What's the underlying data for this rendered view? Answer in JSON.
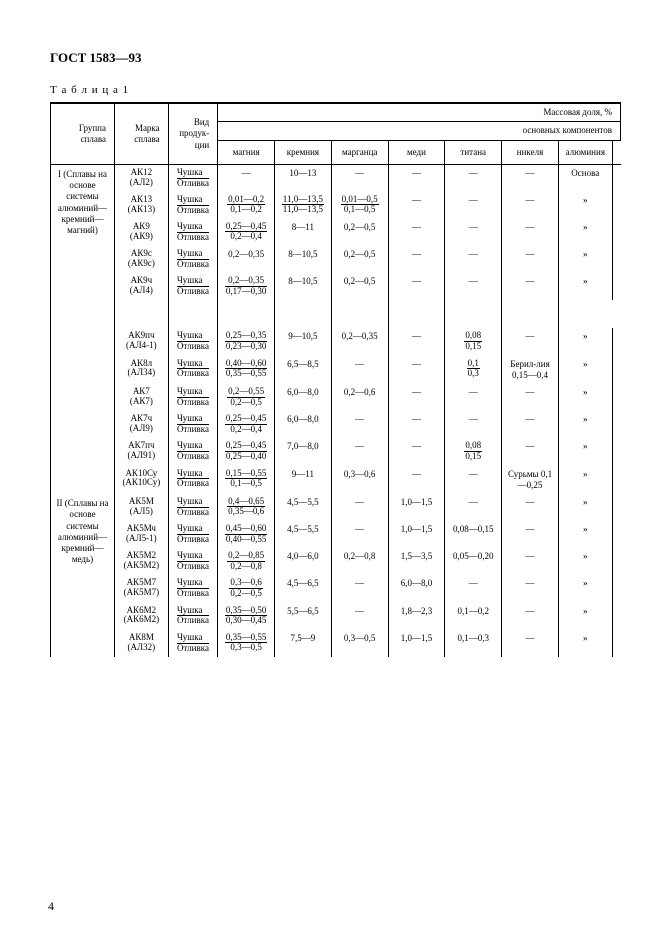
{
  "header": "ГОСТ 1583—93",
  "table_label": "Т а б л и ц а  1",
  "page_number": "4",
  "mass_label": "Массовая доля, %",
  "components_label": "основных компонентов",
  "cols": {
    "group": "Группа сплава",
    "mark": "Марка сплава",
    "prod": "Вид продук-ции",
    "mg": "магния",
    "si": "кремния",
    "mn": "марганца",
    "cu": "меди",
    "ti": "титана",
    "ni": "никеля",
    "al": "алюминия"
  },
  "group1": "I\n(Сплавы на основе системы алюминий—кремний—магний)",
  "group2": "II\n(Сплавы на основе системы алюминий—кремний—медь)",
  "prod_top": "Чушка",
  "prod_bot": "Отливка",
  "osnova": "Основа",
  "ditto": "»",
  "dash": "—",
  "rows1": [
    {
      "mark": "АК12",
      "mark2": "(АЛ2)",
      "mg": {
        "t": "—"
      },
      "si": {
        "t": "10—13"
      },
      "mn": {
        "t": "—"
      },
      "cu": {
        "t": "—"
      },
      "ti": {
        "t": "—"
      },
      "ni": {
        "t": "—"
      },
      "al": "Основа"
    },
    {
      "mark": "АК13",
      "mark2": "(АК13)",
      "mg": {
        "n": "0,01—0,2",
        "d": "0,1—0,2"
      },
      "si": {
        "n": "11,0—13,5",
        "d": "11,0—13,5"
      },
      "mn": {
        "n": "0,01—0,5",
        "d": "0,1—0,5"
      },
      "cu": {
        "t": "—"
      },
      "ti": {
        "t": "—"
      },
      "ni": {
        "t": "—"
      },
      "al": "»"
    },
    {
      "mark": "АК9",
      "mark2": "(АК9)",
      "mg": {
        "n": "0,25—0,45",
        "d": "0,2—0,4"
      },
      "si": {
        "t": "8—11"
      },
      "mn": {
        "t": "0,2—0,5"
      },
      "cu": {
        "t": "—"
      },
      "ti": {
        "t": "—"
      },
      "ni": {
        "t": "—"
      },
      "al": "»"
    },
    {
      "mark": "АК9с",
      "mark2": "(АК9с)",
      "mg": {
        "t": "0,2—0,35"
      },
      "si": {
        "t": "8—10,5"
      },
      "mn": {
        "t": "0,2—0,5"
      },
      "cu": {
        "t": "—"
      },
      "ti": {
        "t": "—"
      },
      "ni": {
        "t": "—"
      },
      "al": "»"
    },
    {
      "mark": "АК9ч",
      "mark2": "(АЛ4)",
      "mg": {
        "n": "0,2—0,35",
        "d": "0,17—0,30"
      },
      "si": {
        "t": "8—10,5"
      },
      "mn": {
        "t": "0,2—0,5"
      },
      "cu": {
        "t": "—"
      },
      "ti": {
        "t": "—"
      },
      "ni": {
        "t": "—"
      },
      "al": "»"
    },
    {
      "spacer": true
    },
    {
      "mark": "АК9пч",
      "mark2": "(АЛ4-1)",
      "mg": {
        "n": "0,25—0,35",
        "d": "0,23—0,30"
      },
      "si": {
        "t": "9—10,5"
      },
      "mn": {
        "t": "0,2—0,35"
      },
      "cu": {
        "t": "—"
      },
      "ti": {
        "n": "0,08",
        "d": "0,15"
      },
      "ni": {
        "t": "—"
      },
      "al": "»"
    },
    {
      "mark": "АК8л",
      "mark2": "(АЛ34)",
      "mg": {
        "n": "0,40—0,60",
        "d": "0,35—0,55"
      },
      "si": {
        "t": "6,5—8,5"
      },
      "mn": {
        "t": "—"
      },
      "cu": {
        "t": "—"
      },
      "ti": {
        "n": "0,1",
        "d": "0,3"
      },
      "ni": {
        "t": "Берил-лия 0,15—0,4"
      },
      "al": "»"
    },
    {
      "mark": "АК7",
      "mark2": "(АК7)",
      "mg": {
        "n": "0,2—0,55",
        "d": "0,2—0,5"
      },
      "si": {
        "t": "6,0—8,0"
      },
      "mn": {
        "t": "0,2—0,6"
      },
      "cu": {
        "t": "—"
      },
      "ti": {
        "t": "—"
      },
      "ni": {
        "t": "—"
      },
      "al": "»"
    },
    {
      "mark": "АК7ч",
      "mark2": "(АЛ9)",
      "mg": {
        "n": "0,25—0,45",
        "d": "0,2—0,4"
      },
      "si": {
        "t": "6,0—8,0"
      },
      "mn": {
        "t": "—"
      },
      "cu": {
        "t": "—"
      },
      "ti": {
        "t": "—"
      },
      "ni": {
        "t": "—"
      },
      "al": "»"
    },
    {
      "mark": "АК7пч",
      "mark2": "(АЛ91)",
      "mg": {
        "n": "0,25—0,45",
        "d": "0,25—0,40"
      },
      "si": {
        "t": "7,0—8,0"
      },
      "mn": {
        "t": "—"
      },
      "cu": {
        "t": "—"
      },
      "ti": {
        "n": "0,08",
        "d": "0,15"
      },
      "ni": {
        "t": "—"
      },
      "al": "»"
    },
    {
      "mark": "АК10Су",
      "mark2": "(АК10Су)",
      "mg": {
        "n": "0,15—0,55",
        "d": "0,1—0,5"
      },
      "si": {
        "t": "9—11"
      },
      "mn": {
        "t": "0,3—0,6"
      },
      "cu": {
        "t": "—"
      },
      "ti": {
        "t": "—"
      },
      "ni": {
        "t": "Сурьмы 0,1—0,25"
      },
      "al": "»"
    }
  ],
  "rows2": [
    {
      "mark": "АК5М",
      "mark2": "(АЛ5)",
      "mg": {
        "n": "0,4—0,65",
        "d": "0,35—0,6"
      },
      "si": {
        "t": "4,5—5,5"
      },
      "mn": {
        "t": "—"
      },
      "cu": {
        "t": "1,0—1,5"
      },
      "ti": {
        "t": "—"
      },
      "ni": {
        "t": "—"
      },
      "al": "»"
    },
    {
      "mark": "АК5Мч",
      "mark2": "(АЛ5-1)",
      "mg": {
        "n": "0,45—0,60",
        "d": "0,40—0,55"
      },
      "si": {
        "t": "4,5—5,5"
      },
      "mn": {
        "t": "—"
      },
      "cu": {
        "t": "1,0—1,5"
      },
      "ti": {
        "t": "0,08—0,15"
      },
      "ni": {
        "t": "—"
      },
      "al": "»"
    },
    {
      "mark": "АК5М2",
      "mark2": "(АК5М2)",
      "mg": {
        "n": "0,2—0,85",
        "d": "0,2—0,8"
      },
      "si": {
        "t": "4,0—6,0"
      },
      "mn": {
        "t": "0,2—0,8"
      },
      "cu": {
        "t": "1,5—3,5"
      },
      "ti": {
        "t": "0,05—0,20"
      },
      "ni": {
        "t": "—"
      },
      "al": "»"
    },
    {
      "mark": "АК5М7",
      "mark2": "(АК5М7)",
      "mg": {
        "n": "0,3—0,6",
        "d": "0,2—0,5"
      },
      "si": {
        "t": "4,5—6,5"
      },
      "mn": {
        "t": "—"
      },
      "cu": {
        "t": "6,0—8,0"
      },
      "ti": {
        "t": "—"
      },
      "ni": {
        "t": "—"
      },
      "al": "»"
    },
    {
      "mark": "АК6М2",
      "mark2": "(АК6М2)",
      "mg": {
        "n": "0,35—0,50",
        "d": "0,30—0,45"
      },
      "si": {
        "t": "5,5—6,5"
      },
      "mn": {
        "t": "—"
      },
      "cu": {
        "t": "1,8—2,3"
      },
      "ti": {
        "t": "0,1—0,2"
      },
      "ni": {
        "t": "—"
      },
      "al": "»"
    },
    {
      "mark": "АК8М",
      "mark2": "(АЛ32)",
      "mg": {
        "n": "0,35—0,55",
        "d": "0,3—0,5"
      },
      "si": {
        "t": "7,5—9"
      },
      "mn": {
        "t": "0,3—0,5"
      },
      "cu": {
        "t": "1,0—1,5"
      },
      "ti": {
        "t": "0,1—0,3"
      },
      "ni": {
        "t": "—"
      },
      "al": "»"
    }
  ]
}
